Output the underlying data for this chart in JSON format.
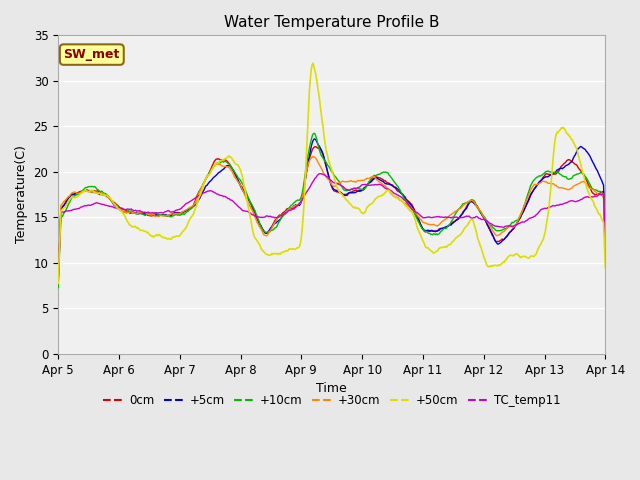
{
  "title": "Water Temperature Profile B",
  "xlabel": "Time",
  "ylabel": "Temperature(C)",
  "ylim": [
    0,
    35
  ],
  "yticks": [
    0,
    5,
    10,
    15,
    20,
    25,
    30,
    35
  ],
  "x_labels": [
    "Apr 5",
    "Apr 6",
    "Apr 7",
    "Apr 8",
    "Apr 9",
    "Apr 10",
    "Apr 11",
    "Apr 12",
    "Apr 13",
    "Apr 14"
  ],
  "annotation_text": "SW_met",
  "annotation_color": "#8B0000",
  "annotation_bg": "#FFFF99",
  "annotation_border": "#8B6914",
  "colors": {
    "0cm": "#dd0000",
    "+5cm": "#0000dd",
    "+10cm": "#00bb00",
    "+30cm": "#ff8800",
    "+50cm": "#dddd00",
    "TC_temp11": "#cc00cc"
  },
  "fig_bg": "#e8e8e8",
  "ax_bg": "#f0f0f0",
  "grid_color": "#ffffff",
  "legend_entries": [
    "0cm",
    "+5cm",
    "+10cm",
    "+30cm",
    "+50cm",
    "TC_temp11"
  ]
}
